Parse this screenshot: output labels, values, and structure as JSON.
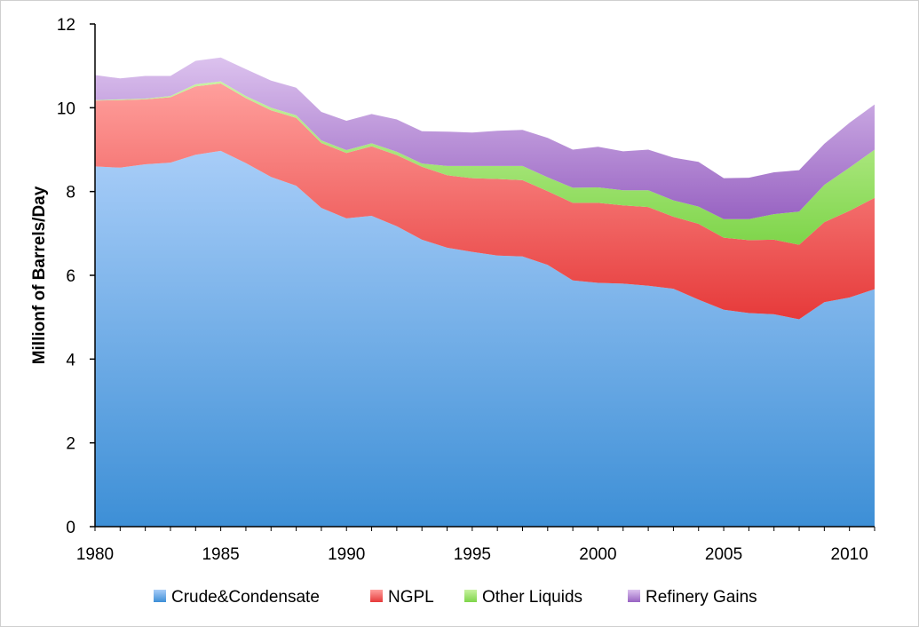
{
  "chart_data": {
    "type": "area",
    "stacked": true,
    "title": "",
    "xlabel": "",
    "ylabel": "Millionf of Barrels/Day",
    "xlim": [
      1980,
      2011
    ],
    "ylim": [
      0,
      12
    ],
    "x_ticks": [
      "1980",
      "1985",
      "1990",
      "1995",
      "2000",
      "2005",
      "2010"
    ],
    "y_ticks": [
      "0",
      "2",
      "4",
      "6",
      "8",
      "10",
      "12"
    ],
    "grid": false,
    "legend_position": "bottom",
    "x": [
      1980,
      1981,
      1982,
      1983,
      1984,
      1985,
      1986,
      1987,
      1988,
      1989,
      1990,
      1991,
      1992,
      1993,
      1994,
      1995,
      1996,
      1997,
      1998,
      1999,
      2000,
      2001,
      2002,
      2003,
      2004,
      2005,
      2006,
      2007,
      2008,
      2009,
      2010,
      2011
    ],
    "series": [
      {
        "name": "Crude&Condensate",
        "color_light": "#a8cdf8",
        "color_dark": "#3d8fd6",
        "values": [
          8.6,
          8.57,
          8.65,
          8.69,
          8.88,
          8.97,
          8.68,
          8.35,
          8.14,
          7.61,
          7.36,
          7.42,
          7.17,
          6.85,
          6.66,
          6.56,
          6.47,
          6.45,
          6.25,
          5.88,
          5.82,
          5.8,
          5.75,
          5.68,
          5.42,
          5.18,
          5.1,
          5.07,
          4.95,
          5.36,
          5.47,
          5.67
        ]
      },
      {
        "name": "NGPL",
        "color_light": "#ff9f9c",
        "color_dark": "#e63a3a",
        "values": [
          1.57,
          1.61,
          1.55,
          1.56,
          1.63,
          1.61,
          1.55,
          1.59,
          1.62,
          1.55,
          1.56,
          1.66,
          1.7,
          1.74,
          1.73,
          1.76,
          1.83,
          1.82,
          1.76,
          1.85,
          1.91,
          1.87,
          1.88,
          1.72,
          1.81,
          1.72,
          1.74,
          1.78,
          1.78,
          1.91,
          2.07,
          2.18
        ]
      },
      {
        "name": "Other Liquids",
        "color_light": "#c8f2a0",
        "color_dark": "#7ed54a",
        "values": [
          0.01,
          0.02,
          0.02,
          0.03,
          0.05,
          0.05,
          0.05,
          0.06,
          0.06,
          0.06,
          0.07,
          0.07,
          0.08,
          0.08,
          0.22,
          0.29,
          0.31,
          0.34,
          0.33,
          0.36,
          0.37,
          0.36,
          0.4,
          0.39,
          0.41,
          0.44,
          0.5,
          0.61,
          0.79,
          0.89,
          1.03,
          1.15
        ]
      },
      {
        "name": "Refinery Gains",
        "color_light": "#dcc2ee",
        "color_dark": "#9863c2",
        "values": [
          0.6,
          0.5,
          0.54,
          0.48,
          0.56,
          0.57,
          0.64,
          0.65,
          0.66,
          0.68,
          0.7,
          0.7,
          0.77,
          0.77,
          0.82,
          0.8,
          0.84,
          0.86,
          0.94,
          0.91,
          0.97,
          0.93,
          0.97,
          1.02,
          1.07,
          0.98,
          0.99,
          1.0,
          0.99,
          0.98,
          1.07,
          1.08
        ]
      }
    ]
  }
}
